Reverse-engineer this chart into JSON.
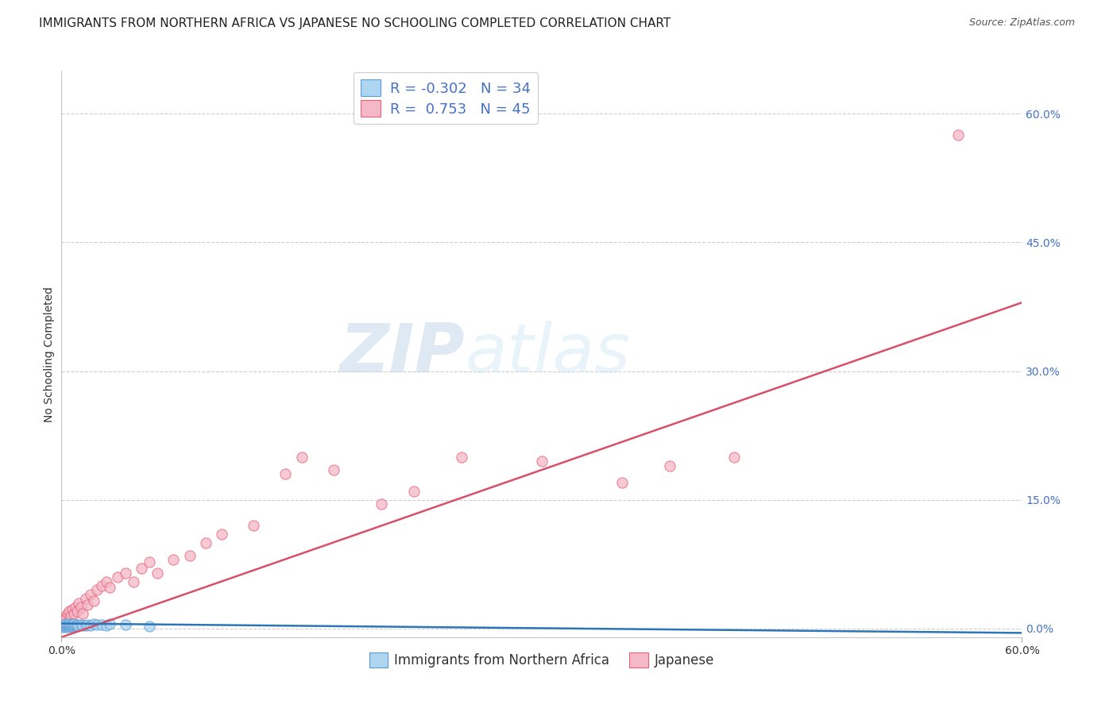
{
  "title": "IMMIGRANTS FROM NORTHERN AFRICA VS JAPANESE NO SCHOOLING COMPLETED CORRELATION CHART",
  "source": "Source: ZipAtlas.com",
  "ylabel": "No Schooling Completed",
  "right_y_ticks": [
    "60.0%",
    "45.0%",
    "30.0%",
    "15.0%",
    "0.0%"
  ],
  "right_y_tick_vals": [
    0.6,
    0.45,
    0.3,
    0.15,
    0.0
  ],
  "xlim": [
    0.0,
    0.6
  ],
  "ylim": [
    -0.01,
    0.65
  ],
  "blue_R": -0.302,
  "blue_N": 34,
  "pink_R": 0.753,
  "pink_N": 45,
  "blue_color": "#aed6f1",
  "pink_color": "#f4b8c8",
  "blue_edge_color": "#5b9bd5",
  "pink_edge_color": "#e8627a",
  "blue_line_color": "#2e75b6",
  "pink_line_color": "#d94f6a",
  "grid_color": "#c8c8c8",
  "watermark_ZIP": "ZIP",
  "watermark_atlas": "atlas",
  "legend_label_blue": "Immigrants from Northern Africa",
  "legend_label_pink": "Japanese",
  "blue_scatter_x": [
    0.001,
    0.001,
    0.002,
    0.002,
    0.003,
    0.003,
    0.003,
    0.004,
    0.004,
    0.005,
    0.005,
    0.005,
    0.006,
    0.006,
    0.007,
    0.007,
    0.008,
    0.008,
    0.009,
    0.01,
    0.01,
    0.011,
    0.012,
    0.013,
    0.015,
    0.016,
    0.018,
    0.02,
    0.022,
    0.025,
    0.028,
    0.03,
    0.04,
    0.055
  ],
  "blue_scatter_y": [
    0.002,
    0.004,
    0.003,
    0.005,
    0.002,
    0.004,
    0.006,
    0.003,
    0.005,
    0.002,
    0.004,
    0.006,
    0.003,
    0.005,
    0.003,
    0.005,
    0.004,
    0.006,
    0.004,
    0.003,
    0.005,
    0.004,
    0.005,
    0.004,
    0.004,
    0.005,
    0.004,
    0.006,
    0.005,
    0.005,
    0.004,
    0.006,
    0.005,
    0.003
  ],
  "pink_scatter_x": [
    0.001,
    0.002,
    0.003,
    0.003,
    0.004,
    0.005,
    0.005,
    0.006,
    0.007,
    0.008,
    0.009,
    0.01,
    0.011,
    0.012,
    0.013,
    0.015,
    0.016,
    0.018,
    0.02,
    0.022,
    0.025,
    0.028,
    0.03,
    0.035,
    0.04,
    0.045,
    0.05,
    0.055,
    0.06,
    0.07,
    0.08,
    0.09,
    0.1,
    0.12,
    0.14,
    0.15,
    0.17,
    0.2,
    0.22,
    0.25,
    0.3,
    0.35,
    0.38,
    0.42,
    0.56
  ],
  "pink_scatter_y": [
    0.01,
    0.008,
    0.015,
    0.012,
    0.018,
    0.01,
    0.02,
    0.015,
    0.022,
    0.018,
    0.025,
    0.02,
    0.03,
    0.025,
    0.018,
    0.035,
    0.028,
    0.04,
    0.032,
    0.045,
    0.05,
    0.055,
    0.048,
    0.06,
    0.065,
    0.055,
    0.07,
    0.078,
    0.065,
    0.08,
    0.085,
    0.1,
    0.11,
    0.12,
    0.18,
    0.2,
    0.185,
    0.145,
    0.16,
    0.2,
    0.195,
    0.17,
    0.19,
    0.2,
    0.575
  ],
  "background_color": "#ffffff",
  "title_fontsize": 11,
  "axis_label_fontsize": 10,
  "tick_fontsize": 10,
  "legend_fontsize": 11,
  "pink_line_x0": 0.0,
  "pink_line_y0": -0.01,
  "pink_line_x1": 0.6,
  "pink_line_y1": 0.38,
  "blue_line_x0": 0.0,
  "blue_line_y0": 0.006,
  "blue_line_x1": 0.6,
  "blue_line_y1": -0.005
}
